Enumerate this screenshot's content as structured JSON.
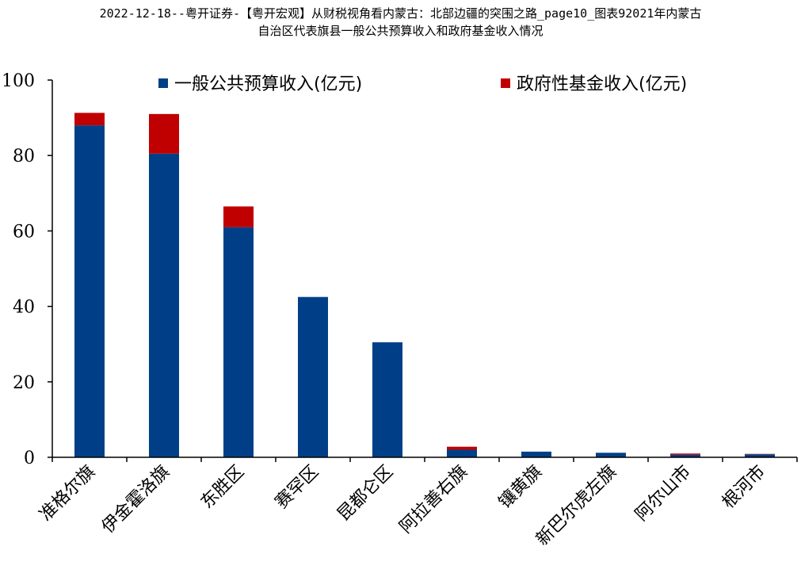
{
  "page_title": {
    "line1": "2022-12-18--粤开证券-【粤开宏观】从财税视角看内蒙古：北部边疆的突围之路_page10_图表92021年内蒙古",
    "line2": "自治区代表旗县一般公共预算收入和政府基金收入情况"
  },
  "chart_data": {
    "type": "bar",
    "stacked": true,
    "categories": [
      "准格尔旗",
      "伊金霍洛旗",
      "东胜区",
      "赛罕区",
      "昆都仑区",
      "阿拉善右旗",
      "镶黄旗",
      "新巴尔虎左旗",
      "阿尔山市",
      "根河市"
    ],
    "series": [
      {
        "name": "一般公共预算收入(亿元)",
        "color": "#003F87",
        "values": [
          88.0,
          80.5,
          61.0,
          42.5,
          30.5,
          2.0,
          1.5,
          1.2,
          0.7,
          0.8
        ]
      },
      {
        "name": "政府性基金收入(亿元)",
        "color": "#C00000",
        "values": [
          3.3,
          10.5,
          5.5,
          0.0,
          0.0,
          0.8,
          0.0,
          0.0,
          0.3,
          0.1
        ]
      }
    ],
    "ylim": [
      0,
      100
    ],
    "yticks": [
      "0",
      "20",
      "40",
      "60",
      "80",
      "100"
    ],
    "xlabel": "",
    "ylabel": "",
    "legend_position": "top",
    "grid": false
  }
}
